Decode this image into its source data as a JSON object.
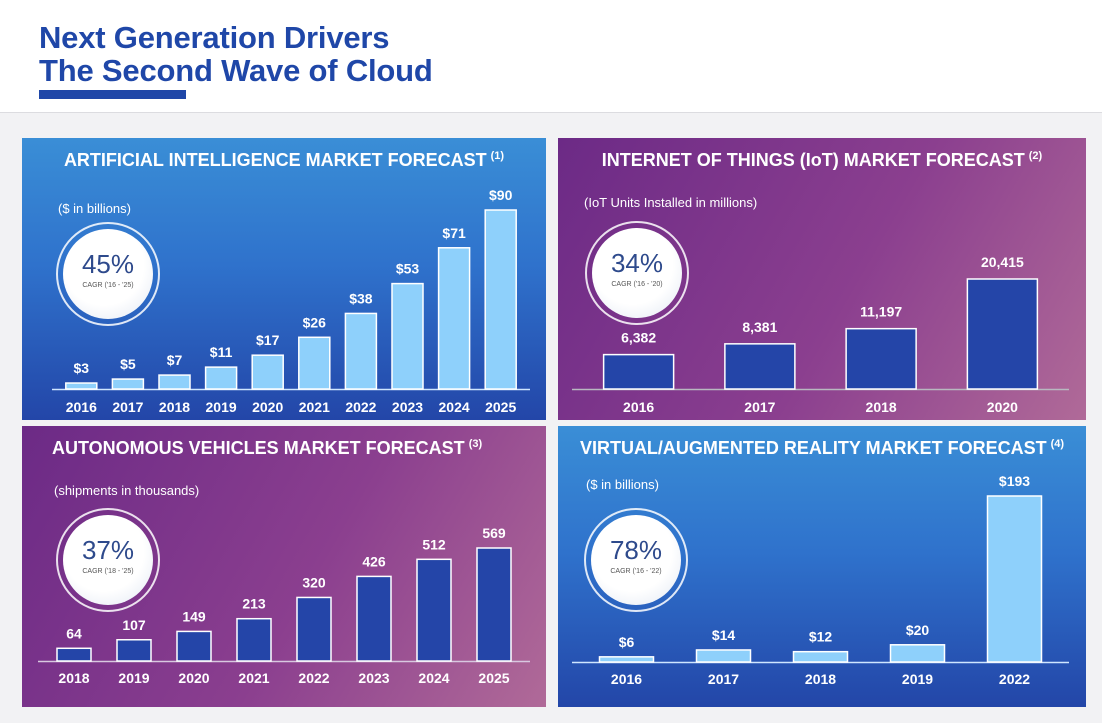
{
  "header": {
    "title_line1": "Next Generation Drivers",
    "title_line2": "The Second Wave of Cloud",
    "accent_color": "#1f47a8"
  },
  "chart_data": [
    {
      "id": "ai",
      "type": "bar",
      "title": "ARTIFICIAL INTELLIGENCE MARKET FORECAST",
      "footnote": "(1)",
      "unit_label": "($ in billions)",
      "cagr": {
        "value": "45%",
        "label": "CAGR ('16 - '25)"
      },
      "categories": [
        "2016",
        "2017",
        "2018",
        "2019",
        "2020",
        "2021",
        "2022",
        "2023",
        "2024",
        "2025"
      ],
      "values": [
        3,
        5,
        7,
        11,
        17,
        26,
        38,
        53,
        71,
        90
      ],
      "value_labels": [
        "$3",
        "$5",
        "$7",
        "$11",
        "$17",
        "$26",
        "$38",
        "$53",
        "$71",
        "$90"
      ],
      "ylim": [
        0,
        90
      ],
      "bar_color": "#8ed0fb",
      "xlabel": "",
      "ylabel": ""
    },
    {
      "id": "iot",
      "type": "bar",
      "title": "INTERNET OF THINGS (IoT) MARKET FORECAST",
      "footnote": "(2)",
      "unit_label": "(IoT Units Installed in millions)",
      "cagr": {
        "value": "34%",
        "label": "CAGR ('16 - '20)"
      },
      "categories": [
        "2016",
        "2017",
        "2018",
        "2020"
      ],
      "values": [
        6382,
        8381,
        11197,
        20415
      ],
      "value_labels": [
        "6,382",
        "8,381",
        "11,197",
        "20,415"
      ],
      "ylim": [
        0,
        20415
      ],
      "bar_color": "#2445a8",
      "xlabel": "",
      "ylabel": ""
    },
    {
      "id": "av",
      "type": "bar",
      "title": "AUTONOMOUS VEHICLES MARKET FORECAST",
      "footnote": "(3)",
      "unit_label": "(shipments in thousands)",
      "cagr": {
        "value": "37%",
        "label": "CAGR ('18 - '25)"
      },
      "categories": [
        "2018",
        "2019",
        "2020",
        "2021",
        "2022",
        "2023",
        "2024",
        "2025"
      ],
      "values": [
        64,
        107,
        149,
        213,
        320,
        426,
        512,
        569
      ],
      "value_labels": [
        "64",
        "107",
        "149",
        "213",
        "320",
        "426",
        "512",
        "569"
      ],
      "ylim": [
        0,
        569
      ],
      "bar_color": "#2445a8",
      "xlabel": "",
      "ylabel": ""
    },
    {
      "id": "vr",
      "type": "bar",
      "title": "VIRTUAL/AUGMENTED REALITY MARKET FORECAST",
      "footnote": "(4)",
      "unit_label": "($ in billions)",
      "cagr": {
        "value": "78%",
        "label": "CAGR ('16 - '22)"
      },
      "categories": [
        "2016",
        "2017",
        "2018",
        "2019",
        "2022"
      ],
      "values": [
        6,
        14,
        12,
        20,
        193
      ],
      "value_labels": [
        "$6",
        "$14",
        "$12",
        "$20",
        "$193"
      ],
      "ylim": [
        0,
        193
      ],
      "bar_color": "#8ed0fb",
      "xlabel": "",
      "ylabel": ""
    }
  ]
}
